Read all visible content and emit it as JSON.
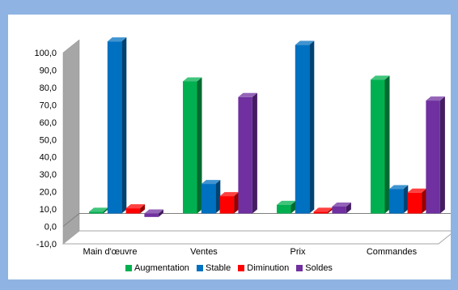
{
  "chart_data": {
    "type": "bar",
    "categories": [
      "Main d'œuvre",
      "Ventes",
      "Prix",
      "Commandes"
    ],
    "series": [
      {
        "name": "Augmentation",
        "color": "#00b050",
        "values": [
          1.0,
          76.0,
          5.0,
          77.0
        ]
      },
      {
        "name": "Stable",
        "color": "#0070c0",
        "values": [
          99.0,
          17.0,
          97.0,
          14.0
        ]
      },
      {
        "name": "Diminution",
        "color": "#ff0000",
        "values": [
          3.0,
          10.0,
          1.0,
          12.0
        ]
      },
      {
        "name": "Soldes",
        "color": "#7030a0",
        "values": [
          -2.0,
          67.0,
          4.0,
          65.0
        ]
      }
    ],
    "ylim": [
      -10,
      100
    ],
    "yticks": [
      "-10,0",
      "0,0",
      "10,0",
      "20,0",
      "30,0",
      "40,0",
      "50,0",
      "60,0",
      "70,0",
      "80,0",
      "90,0",
      "100,0"
    ],
    "ytick_values": [
      -10,
      0,
      10,
      20,
      30,
      40,
      50,
      60,
      70,
      80,
      90,
      100
    ],
    "grid": false,
    "legend": "bottom",
    "three_d": true
  }
}
